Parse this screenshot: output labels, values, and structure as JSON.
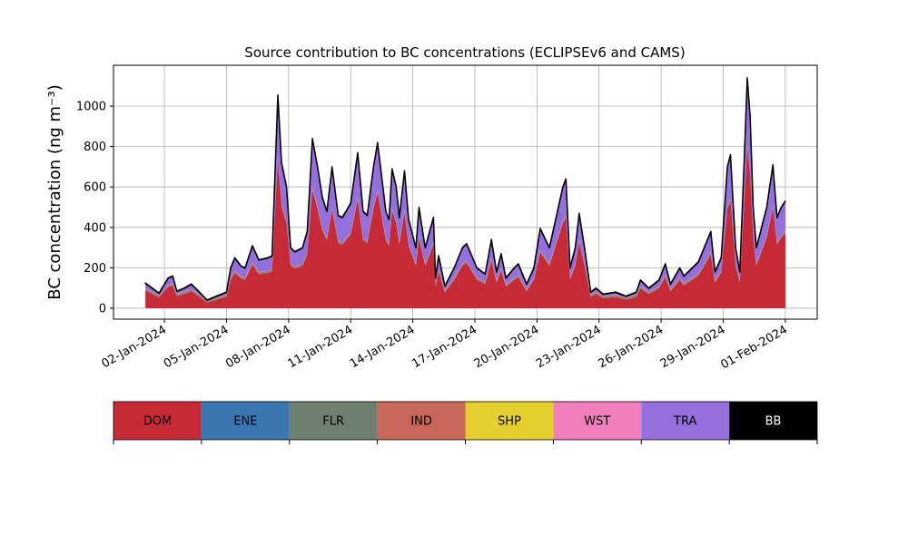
{
  "chart_data": {
    "type": "stacked_area",
    "title": "Source contribution to BC concentrations (ECLIPSEv6 and CAMS)",
    "y_label": "BC concentration (ng m⁻³)",
    "xlim": [
      -0.46,
      33.54
    ],
    "ylim": [
      -54,
      1202
    ],
    "xticks": [
      {
        "value": 2,
        "label": "02-Jan-2024"
      },
      {
        "value": 5,
        "label": "05-Jan-2024"
      },
      {
        "value": 8,
        "label": "08-Jan-2024"
      },
      {
        "value": 11,
        "label": "11-Jan-2024"
      },
      {
        "value": 14,
        "label": "14-Jan-2024"
      },
      {
        "value": 17,
        "label": "17-Jan-2024"
      },
      {
        "value": 20,
        "label": "20-Jan-2024"
      },
      {
        "value": 23,
        "label": "23-Jan-2024"
      },
      {
        "value": 26,
        "label": "26-Jan-2024"
      },
      {
        "value": 29,
        "label": "29-Jan-2024"
      },
      {
        "value": 32,
        "label": "01-Feb-2024"
      }
    ],
    "yticks": [
      0,
      200,
      400,
      600,
      800,
      1000
    ],
    "grid": true,
    "x": [
      1.08,
      1.74,
      2.18,
      2.4,
      2.6,
      2.96,
      3.3,
      3.5,
      4.06,
      5.0,
      5.2,
      5.4,
      5.7,
      5.9,
      6.25,
      6.56,
      7.0,
      7.2,
      7.48,
      7.66,
      7.9,
      8.1,
      8.3,
      8.67,
      8.9,
      9.15,
      9.4,
      9.63,
      9.85,
      10.1,
      10.4,
      10.6,
      11.0,
      11.34,
      11.6,
      11.8,
      12.1,
      12.3,
      12.7,
      12.85,
      13.0,
      13.2,
      13.35,
      13.6,
      13.8,
      14.15,
      14.3,
      14.6,
      15.0,
      15.1,
      15.25,
      15.55,
      16.0,
      16.4,
      16.6,
      17.1,
      17.5,
      17.8,
      18.05,
      18.27,
      18.5,
      18.9,
      19.1,
      19.5,
      19.85,
      20.16,
      20.6,
      21.25,
      21.4,
      21.6,
      21.85,
      22.04,
      22.3,
      22.6,
      22.85,
      23.2,
      23.8,
      24.3,
      24.8,
      25.0,
      25.4,
      25.9,
      26.2,
      26.45,
      26.9,
      27.1,
      27.5,
      27.8,
      28.4,
      28.6,
      28.9,
      29.2,
      29.35,
      29.6,
      29.8,
      30.0,
      30.16,
      30.3,
      30.45,
      30.6,
      30.85,
      31.1,
      31.4,
      31.6,
      31.8,
      32.0
    ],
    "series": [
      {
        "name": "DOM",
        "color": "#c62a37",
        "values": [
          88,
          53,
          105,
          112,
          60,
          70,
          84,
          70,
          28,
          56,
          140,
          175,
          147,
          140,
          217,
          168,
          175,
          182,
          739,
          504,
          420,
          210,
          196,
          210,
          266,
          588,
          490,
          385,
          336,
          490,
          322,
          315,
          364,
          539,
          336,
          322,
          490,
          574,
          336,
          308,
          483,
          420,
          315,
          476,
          308,
          210,
          350,
          210,
          315,
          105,
          182,
          77,
          140,
          210,
          224,
          140,
          119,
          238,
          126,
          189,
          105,
          140,
          154,
          84,
          140,
          277,
          210,
          420,
          448,
          140,
          210,
          329,
          210,
          56,
          70,
          49,
          56,
          42,
          56,
          98,
          70,
          98,
          154,
          84,
          140,
          112,
          140,
          161,
          266,
          126,
          175,
          490,
          532,
          210,
          126,
          490,
          798,
          665,
          350,
          210,
          280,
          350,
          497,
          315,
          350,
          371
        ]
      },
      {
        "name": "ENE",
        "color": "#3a77b0",
        "values": [
          1,
          1,
          1,
          1,
          1,
          1,
          1,
          1,
          1,
          1,
          1,
          1,
          1,
          1,
          1,
          1,
          1,
          1,
          1,
          1,
          1,
          1,
          1,
          1,
          1,
          1,
          1,
          1,
          1,
          1,
          1,
          1,
          1,
          1,
          1,
          1,
          1,
          1,
          1,
          1,
          1,
          1,
          1,
          1,
          1,
          1,
          1,
          1,
          1,
          1,
          1,
          1,
          1,
          1,
          1,
          1,
          1,
          1,
          1,
          1,
          1,
          1,
          1,
          1,
          1,
          1,
          1,
          1,
          1,
          1,
          1,
          1,
          1,
          1,
          1,
          1,
          1,
          1,
          1,
          1,
          1,
          1,
          1,
          1,
          1,
          1,
          1,
          1,
          1,
          1,
          1,
          1,
          1,
          1,
          1,
          1,
          1,
          1,
          1,
          1,
          1,
          1,
          1,
          1,
          1,
          1
        ]
      },
      {
        "name": "FLR",
        "color": "#6e8070",
        "values": [
          5,
          5,
          5,
          5,
          5,
          5,
          5,
          5,
          5,
          5,
          5,
          5,
          5,
          5,
          5,
          5,
          5,
          5,
          5,
          5,
          5,
          5,
          5,
          5,
          5,
          5,
          5,
          5,
          5,
          5,
          5,
          5,
          5,
          5,
          5,
          5,
          5,
          5,
          5,
          5,
          5,
          5,
          5,
          5,
          5,
          5,
          5,
          5,
          5,
          5,
          5,
          5,
          5,
          5,
          5,
          5,
          5,
          5,
          5,
          5,
          5,
          5,
          5,
          5,
          5,
          5,
          5,
          5,
          5,
          5,
          5,
          5,
          5,
          5,
          5,
          5,
          5,
          5,
          5,
          5,
          5,
          5,
          5,
          5,
          5,
          5,
          5,
          5,
          5,
          5,
          5,
          5,
          5,
          5,
          5,
          5,
          5,
          5,
          5,
          5,
          5,
          5,
          5,
          5,
          5,
          5
        ]
      },
      {
        "name": "IND",
        "color": "#c8665a",
        "values": [
          4,
          4,
          4,
          4,
          4,
          4,
          4,
          4,
          4,
          4,
          4,
          4,
          4,
          4,
          4,
          4,
          4,
          4,
          4,
          4,
          4,
          4,
          4,
          4,
          4,
          4,
          4,
          4,
          4,
          4,
          4,
          4,
          4,
          4,
          4,
          4,
          4,
          4,
          4,
          4,
          4,
          4,
          4,
          4,
          4,
          4,
          4,
          4,
          4,
          4,
          4,
          4,
          4,
          4,
          4,
          4,
          4,
          4,
          4,
          4,
          4,
          4,
          4,
          4,
          4,
          4,
          4,
          4,
          4,
          4,
          4,
          4,
          4,
          4,
          4,
          4,
          4,
          4,
          4,
          4,
          4,
          4,
          4,
          4,
          4,
          4,
          4,
          4,
          4,
          4,
          4,
          4,
          4,
          4,
          4,
          4,
          4,
          4,
          4,
          4,
          4,
          4,
          4,
          4,
          4,
          4
        ]
      },
      {
        "name": "SHP",
        "color": "#e6d02f",
        "values": [
          0,
          0,
          0,
          0,
          0,
          0,
          0,
          0,
          0,
          0,
          0,
          0,
          0,
          0,
          0,
          0,
          0,
          0,
          0,
          0,
          0,
          0,
          0,
          0,
          0,
          0,
          0,
          0,
          0,
          0,
          0,
          0,
          0,
          0,
          0,
          0,
          0,
          0,
          0,
          0,
          0,
          0,
          0,
          0,
          0,
          0,
          0,
          0,
          0,
          0,
          0,
          0,
          0,
          0,
          0,
          0,
          0,
          0,
          0,
          0,
          0,
          0,
          0,
          0,
          0,
          0,
          0,
          0,
          0,
          0,
          0,
          0,
          0,
          0,
          0,
          0,
          0,
          0,
          0,
          0,
          0,
          0,
          0,
          0,
          0,
          0,
          0,
          0,
          0,
          0,
          0,
          0,
          0,
          0,
          0,
          0,
          0,
          0,
          0,
          0,
          0,
          0,
          0,
          0,
          0,
          0
        ]
      },
      {
        "name": "WST",
        "color": "#f07fbb",
        "values": [
          1,
          1,
          1,
          1,
          1,
          1,
          1,
          1,
          1,
          1,
          1,
          1,
          1,
          1,
          1,
          1,
          1,
          1,
          1,
          1,
          1,
          1,
          1,
          1,
          1,
          1,
          1,
          1,
          1,
          1,
          1,
          1,
          1,
          1,
          1,
          1,
          1,
          1,
          1,
          1,
          1,
          1,
          1,
          1,
          1,
          1,
          1,
          1,
          1,
          1,
          1,
          1,
          1,
          1,
          1,
          1,
          1,
          1,
          1,
          1,
          1,
          1,
          1,
          1,
          1,
          1,
          1,
          1,
          1,
          1,
          1,
          1,
          1,
          1,
          1,
          1,
          1,
          1,
          1,
          1,
          1,
          1,
          1,
          1,
          1,
          1,
          1,
          1,
          1,
          1,
          1,
          1,
          1,
          1,
          1,
          1,
          1,
          1,
          1,
          1,
          1,
          1,
          1,
          1,
          1,
          1
        ]
      },
      {
        "name": "TRA",
        "color": "#9370db",
        "values": [
          24,
          9,
          32,
          35,
          12,
          17,
          23,
          17,
          0,
          11,
          47,
          62,
          50,
          47,
          80,
          59,
          62,
          65,
          303,
          203,
          167,
          77,
          71,
          77,
          101,
          239,
          197,
          152,
          131,
          197,
          125,
          122,
          143,
          218,
          131,
          125,
          197,
          233,
          131,
          119,
          194,
          167,
          122,
          191,
          119,
          77,
          137,
          77,
          122,
          32,
          65,
          20,
          47,
          77,
          83,
          47,
          38,
          89,
          41,
          68,
          32,
          47,
          53,
          23,
          47,
          105,
          77,
          167,
          179,
          47,
          77,
          128,
          77,
          11,
          17,
          8,
          11,
          5,
          11,
          29,
          17,
          29,
          53,
          23,
          47,
          35,
          47,
          56,
          101,
          41,
          62,
          197,
          215,
          77,
          41,
          197,
          329,
          272,
          137,
          77,
          107,
          137,
          200,
          122,
          137,
          146
        ]
      },
      {
        "name": "BB",
        "color": "#000000",
        "values": [
          2,
          2,
          2,
          2,
          2,
          2,
          2,
          2,
          2,
          2,
          2,
          2,
          2,
          2,
          2,
          2,
          2,
          2,
          2,
          2,
          2,
          2,
          2,
          2,
          2,
          2,
          2,
          2,
          2,
          2,
          2,
          2,
          2,
          2,
          2,
          2,
          2,
          2,
          2,
          2,
          2,
          2,
          2,
          2,
          2,
          2,
          2,
          2,
          2,
          2,
          2,
          2,
          2,
          2,
          2,
          2,
          2,
          2,
          2,
          2,
          2,
          2,
          2,
          2,
          2,
          2,
          2,
          2,
          2,
          2,
          2,
          2,
          2,
          2,
          2,
          2,
          2,
          2,
          2,
          2,
          2,
          2,
          2,
          2,
          2,
          2,
          2,
          2,
          2,
          2,
          2,
          2,
          2,
          2,
          2,
          2,
          2,
          2,
          2,
          2,
          2,
          2,
          2,
          2,
          2,
          2
        ]
      }
    ]
  }
}
